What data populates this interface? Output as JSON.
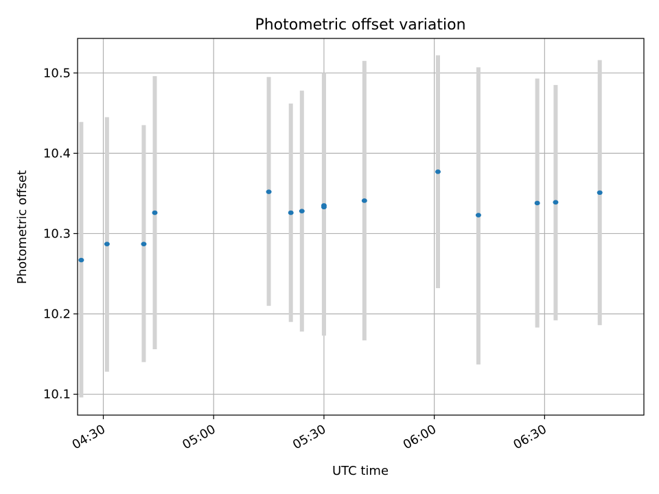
{
  "chart_data": {
    "type": "scatter",
    "title": "Photometric offset variation",
    "xlabel": "UTC time",
    "ylabel": "Photometric offset",
    "x_ticks": [
      "04:30",
      "05:00",
      "05:30",
      "06:00",
      "06:30"
    ],
    "y_ticks": [
      "10.1",
      "10.2",
      "10.3",
      "10.4",
      "10.5"
    ],
    "xlim": [
      "04:23",
      "06:57"
    ],
    "ylim": [
      10.074,
      10.543
    ],
    "grid": true,
    "colors": {
      "point": "#1f77b4",
      "errorbar": "#d3d3d3",
      "grid": "#b0b0b0"
    },
    "points": [
      {
        "x": "04:24",
        "y": 10.267,
        "yerr_low": 10.096,
        "yerr_high": 10.439
      },
      {
        "x": "04:31",
        "y": 10.287,
        "yerr_low": 10.128,
        "yerr_high": 10.445
      },
      {
        "x": "04:41",
        "y": 10.287,
        "yerr_low": 10.14,
        "yerr_high": 10.435
      },
      {
        "x": "04:44",
        "y": 10.326,
        "yerr_low": 10.156,
        "yerr_high": 10.496
      },
      {
        "x": "05:15",
        "y": 10.352,
        "yerr_low": 10.21,
        "yerr_high": 10.495
      },
      {
        "x": "05:21",
        "y": 10.326,
        "yerr_low": 10.19,
        "yerr_high": 10.462
      },
      {
        "x": "05:24",
        "y": 10.328,
        "yerr_low": 10.178,
        "yerr_high": 10.478
      },
      {
        "x": "05:30",
        "y": 10.335,
        "yerr_low": 10.173,
        "yerr_high": 10.5
      },
      {
        "x": "05:30",
        "y": 10.333,
        "yerr_low": 10.173,
        "yerr_high": 10.5
      },
      {
        "x": "05:41",
        "y": 10.341,
        "yerr_low": 10.167,
        "yerr_high": 10.515
      },
      {
        "x": "06:01",
        "y": 10.377,
        "yerr_low": 10.232,
        "yerr_high": 10.522
      },
      {
        "x": "06:12",
        "y": 10.323,
        "yerr_low": 10.137,
        "yerr_high": 10.507
      },
      {
        "x": "06:28",
        "y": 10.338,
        "yerr_low": 10.183,
        "yerr_high": 10.493
      },
      {
        "x": "06:33",
        "y": 10.339,
        "yerr_low": 10.192,
        "yerr_high": 10.485
      },
      {
        "x": "06:45",
        "y": 10.351,
        "yerr_low": 10.186,
        "yerr_high": 10.516
      }
    ]
  }
}
